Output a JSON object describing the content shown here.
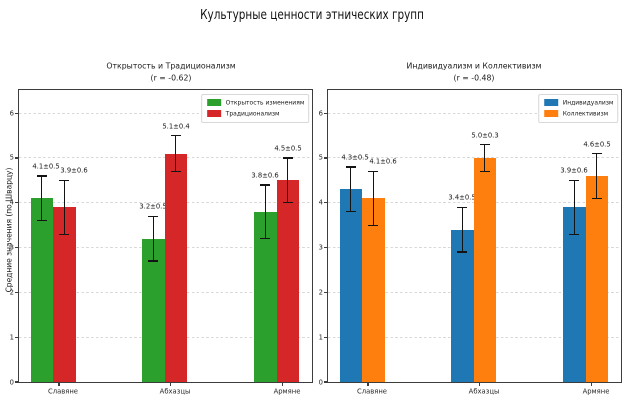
{
  "title": "Культурные ценности этнических групп",
  "chart_data": [
    {
      "type": "bar",
      "title": "Открытость и Традиционализм",
      "subtitle": "(r = -0.62)",
      "ylabel": "Средние значения (по Шварцу)",
      "categories": [
        "Славяне",
        "Абхазцы",
        "Армяне"
      ],
      "series": [
        {
          "name": "Открытость изменениям",
          "color": "#2ca02c",
          "values": [
            4.1,
            3.2,
            3.8
          ],
          "errors": [
            0.5,
            0.5,
            0.6
          ],
          "labels": [
            "4.1±0.5",
            "3.2±0.5",
            "3.8±0.6"
          ]
        },
        {
          "name": "Традиционализм",
          "color": "#d62728",
          "values": [
            3.9,
            5.1,
            4.5
          ],
          "errors": [
            0.6,
            0.4,
            0.5
          ],
          "labels": [
            "3.9±0.6",
            "5.1±0.4",
            "4.5±0.5"
          ]
        }
      ],
      "yticks": [
        0,
        1,
        2,
        3,
        4,
        5,
        6
      ],
      "ylim": [
        0,
        6.54
      ],
      "grid": "horizontal-dashed",
      "legend_position": "upper right"
    },
    {
      "type": "bar",
      "title": "Индивидуализм и Коллективизм",
      "subtitle": "(r = -0.48)",
      "ylabel": "",
      "categories": [
        "Славяне",
        "Абхазцы",
        "Армяне"
      ],
      "series": [
        {
          "name": "Индивидуализм",
          "color": "#1f77b4",
          "values": [
            4.3,
            3.4,
            3.9
          ],
          "errors": [
            0.5,
            0.5,
            0.6
          ],
          "labels": [
            "4.3±0.5",
            "3.4±0.5",
            "3.9±0.6"
          ]
        },
        {
          "name": "Коллективизм",
          "color": "#ff7f0e",
          "values": [
            4.1,
            5.0,
            4.6
          ],
          "errors": [
            0.6,
            0.3,
            0.5
          ],
          "labels": [
            "4.1±0.6",
            "5.0±0.3",
            "4.6±0.5"
          ]
        }
      ],
      "yticks": [
        0,
        1,
        2,
        3,
        4,
        5,
        6
      ],
      "ylim": [
        0,
        6.54
      ],
      "grid": "horizontal-dashed",
      "legend_position": "upper right"
    }
  ]
}
